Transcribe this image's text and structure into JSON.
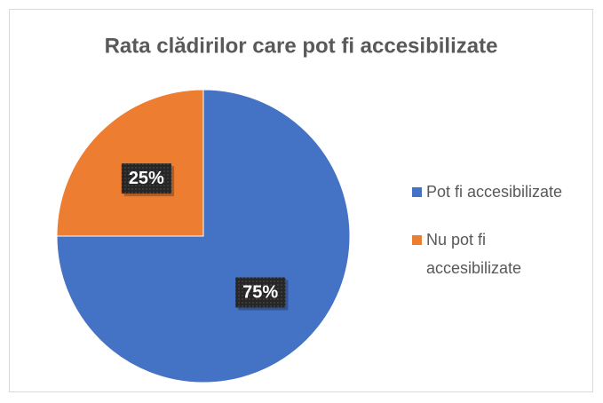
{
  "chart_data": {
    "type": "pie",
    "title": "Rata clădirilor care pot fi accesibilizate",
    "categories": [
      "Pot fi accesibilizate",
      "Nu pot fi accesibilizate"
    ],
    "values": [
      75,
      25
    ],
    "value_labels": [
      "75%",
      "25%"
    ],
    "colors": [
      "#4472c4",
      "#ed7d31"
    ],
    "legend": "right"
  }
}
